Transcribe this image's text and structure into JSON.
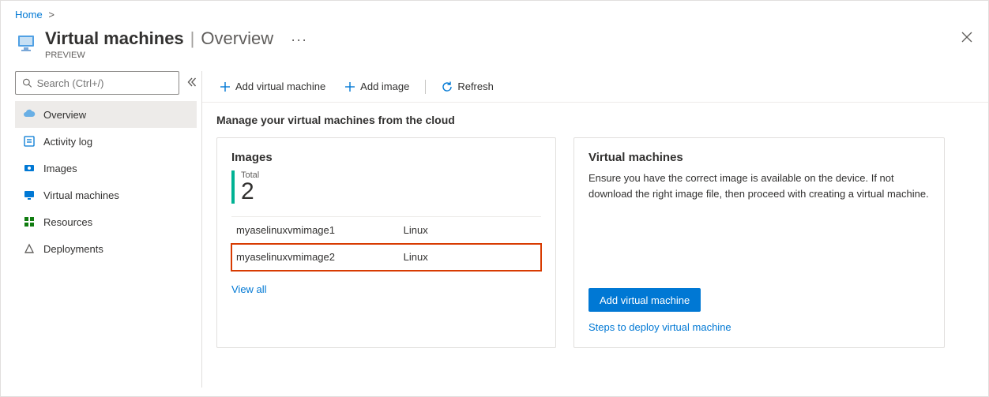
{
  "breadcrumb": {
    "home": "Home"
  },
  "header": {
    "title": "Virtual machines",
    "subtitle": "Overview",
    "preview": "PREVIEW"
  },
  "search": {
    "placeholder": "Search (Ctrl+/)"
  },
  "sidebar": {
    "items": [
      {
        "label": "Overview",
        "icon": "cloud"
      },
      {
        "label": "Activity log",
        "icon": "log"
      },
      {
        "label": "Images",
        "icon": "images"
      },
      {
        "label": "Virtual machines",
        "icon": "vm"
      },
      {
        "label": "Resources",
        "icon": "grid"
      },
      {
        "label": "Deployments",
        "icon": "deploy"
      }
    ]
  },
  "toolbar": {
    "add_vm": "Add virtual machine",
    "add_image": "Add image",
    "refresh": "Refresh"
  },
  "main": {
    "subhead": "Manage your virtual machines from the cloud"
  },
  "images_card": {
    "title": "Images",
    "total_label": "Total",
    "total_value": "2",
    "accent_color": "#00b294",
    "highlight_color": "#d83b01",
    "rows": [
      {
        "name": "myaselinuxvmimage1",
        "os": "Linux",
        "highlight": false
      },
      {
        "name": "myaselinuxvmimage2",
        "os": "Linux",
        "highlight": true
      }
    ],
    "view_all": "View all"
  },
  "vms_card": {
    "title": "Virtual machines",
    "body": "Ensure you have the correct image is available on the device. If not download the right image file, then proceed with creating a virtual machine.",
    "button": "Add virtual machine",
    "steps_link": "Steps to deploy virtual machine"
  },
  "colors": {
    "link": "#0078d4",
    "primary": "#0078d4",
    "border": "#e1dfdd",
    "muted": "#605e5c"
  }
}
